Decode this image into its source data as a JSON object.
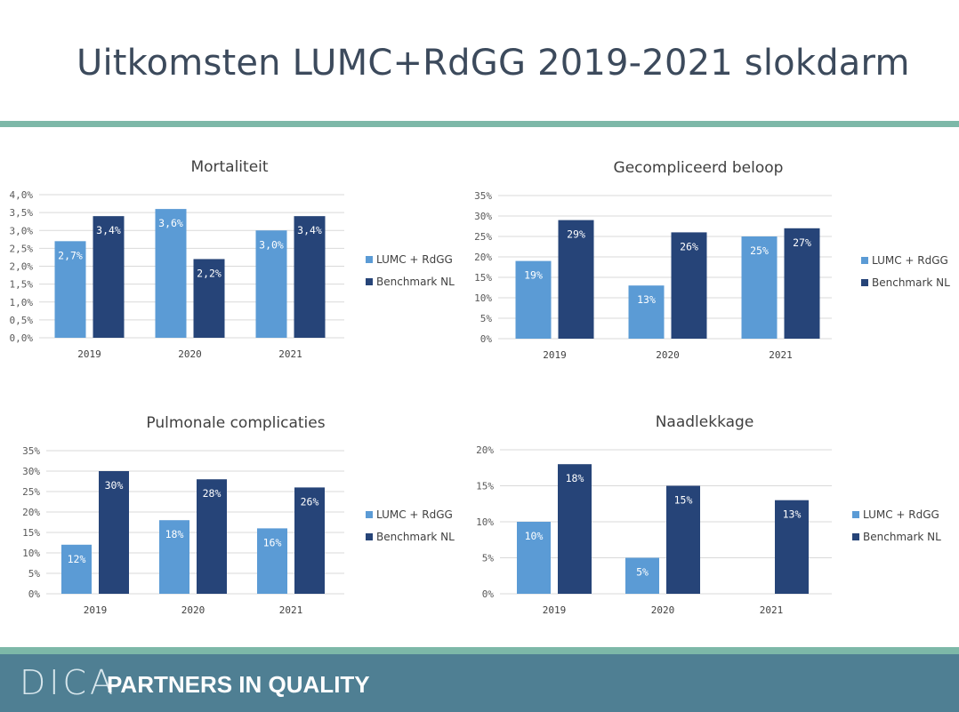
{
  "title": "Uitkomsten LUMC+RdGG 2019-2021 slokdarm",
  "footer": {
    "logo": "DICA",
    "tagline": "PARTNERS IN QUALITY"
  },
  "colors": {
    "lumc": "#5b9bd5",
    "benchmark": "#264478",
    "accent": "#7db8a8",
    "footer": "#4f7f93"
  },
  "chart_data": [
    {
      "type": "bar",
      "title": "Mortaliteit",
      "categories": [
        "2019",
        "2020",
        "2021"
      ],
      "series": [
        {
          "name": "LUMC + RdGG",
          "values": [
            2.7,
            3.6,
            3.0
          ],
          "labels": [
            "2,7%",
            "3,6%",
            "3,0%"
          ]
        },
        {
          "name": "Benchmark NL",
          "values": [
            3.4,
            2.2,
            3.4
          ],
          "labels": [
            "3,4%",
            "2,2%",
            "3,4%"
          ]
        }
      ],
      "yticks": [
        "0,0%",
        "0,5%",
        "1,0%",
        "1,5%",
        "2,0%",
        "2,5%",
        "3,0%",
        "3,5%",
        "4,0%"
      ],
      "ylim": [
        0,
        4.0
      ],
      "legend_position": "right",
      "grid": true
    },
    {
      "type": "bar",
      "title": "Gecompliceerd beloop",
      "categories": [
        "2019",
        "2020",
        "2021"
      ],
      "series": [
        {
          "name": "LUMC + RdGG",
          "values": [
            19,
            13,
            25
          ],
          "labels": [
            "19%",
            "13%",
            "25%"
          ]
        },
        {
          "name": "Benchmark NL",
          "values": [
            29,
            26,
            27
          ],
          "labels": [
            "29%",
            "26%",
            "27%"
          ]
        }
      ],
      "yticks": [
        "0%",
        "5%",
        "10%",
        "15%",
        "20%",
        "25%",
        "30%",
        "35%"
      ],
      "ylim": [
        0,
        35
      ],
      "legend_position": "right",
      "grid": true
    },
    {
      "type": "bar",
      "title": "Pulmonale complicaties",
      "categories": [
        "2019",
        "2020",
        "2021"
      ],
      "series": [
        {
          "name": "LUMC + RdGG",
          "values": [
            12,
            18,
            16
          ],
          "labels": [
            "12%",
            "18%",
            "16%"
          ]
        },
        {
          "name": "Benchmark NL",
          "values": [
            30,
            28,
            26
          ],
          "labels": [
            "30%",
            "28%",
            "26%"
          ]
        }
      ],
      "yticks": [
        "0%",
        "5%",
        "10%",
        "15%",
        "20%",
        "25%",
        "30%",
        "35%"
      ],
      "ylim": [
        0,
        35
      ],
      "legend_position": "right",
      "grid": true
    },
    {
      "type": "bar",
      "title": "Naadlekkage",
      "categories": [
        "2019",
        "2020",
        "2021"
      ],
      "series": [
        {
          "name": "LUMC + RdGG",
          "values": [
            10,
            5,
            null
          ],
          "labels": [
            "10%",
            "5%",
            ""
          ]
        },
        {
          "name": "Benchmark NL",
          "values": [
            18,
            15,
            13
          ],
          "labels": [
            "18%",
            "15%",
            "13%"
          ]
        }
      ],
      "yticks": [
        "0%",
        "5%",
        "10%",
        "15%",
        "20%"
      ],
      "ylim": [
        0,
        20
      ],
      "legend_position": "right",
      "grid": true
    }
  ]
}
